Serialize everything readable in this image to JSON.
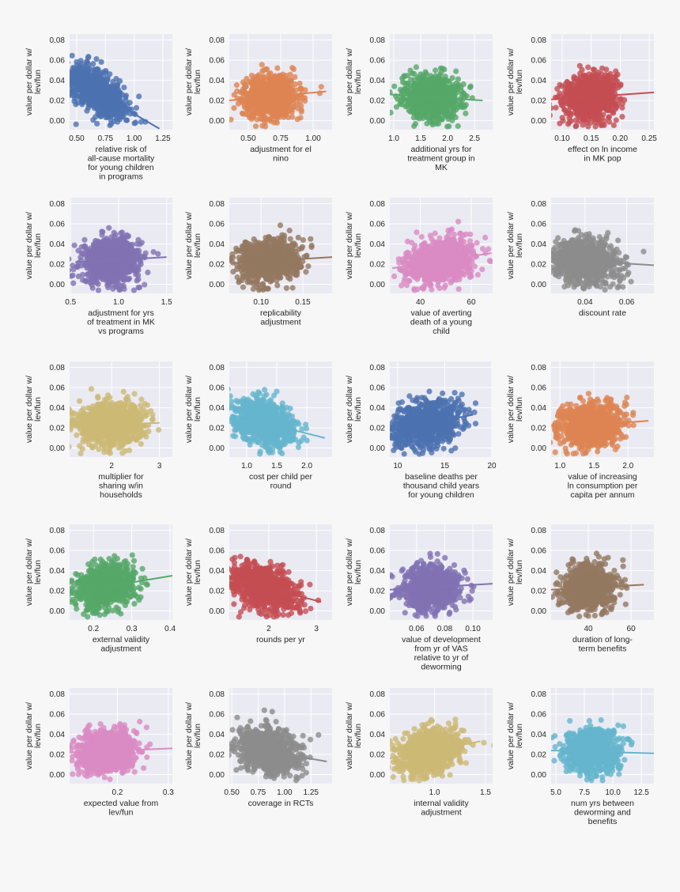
{
  "chart_data": {
    "type": "scatter",
    "layout": "grid 5 rows x 4 columns",
    "shared_ylabel": [
      "value per dollar w/",
      "lev/fun"
    ],
    "ylim": [
      -0.009,
      0.086
    ],
    "yticks": [
      "0.00",
      "0.02",
      "0.04",
      "0.06",
      "0.08"
    ],
    "ytick_values": [
      0,
      0.02,
      0.04,
      0.06,
      0.08
    ],
    "grid": true,
    "background": "#eaeaf2",
    "regression_line": true,
    "plots": [
      {
        "xlabel": [
          "relative risk of",
          "all-cause mortality",
          "for young children",
          "in programs"
        ],
        "xticks": [
          "0.50",
          "0.75",
          "1.00",
          "1.25"
        ],
        "xtick_values": [
          0.5,
          0.75,
          1.0,
          1.25
        ],
        "xlim": [
          0.438,
          1.333
        ],
        "color": "#4c72b0",
        "x_mean": 0.68,
        "x_sd": 0.12,
        "trend": [
          [
            0.44,
            0.044
          ],
          [
            1.22,
            -0.008
          ]
        ]
      },
      {
        "xlabel": [
          "adjustment for el",
          "nino"
        ],
        "xticks": [
          "0.50",
          "0.75",
          "1.00"
        ],
        "xtick_values": [
          0.5,
          0.75,
          1.0
        ],
        "xlim": [
          0.354,
          1.146
        ],
        "color": "#dd8452",
        "x_mean": 0.67,
        "x_sd": 0.1,
        "trend": [
          [
            0.354,
            0.02
          ],
          [
            1.1,
            0.029
          ]
        ]
      },
      {
        "xlabel": [
          "additional yrs for",
          "treatment group in",
          "MK"
        ],
        "xticks": [
          "1.0",
          "1.5",
          "2.0",
          "2.5"
        ],
        "xtick_values": [
          1.0,
          1.5,
          2.0,
          2.5
        ],
        "xlim": [
          0.927,
          2.835
        ],
        "color": "#55a868",
        "x_mean": 1.7,
        "x_sd": 0.25,
        "trend": [
          [
            0.93,
            0.026
          ],
          [
            2.65,
            0.02
          ]
        ]
      },
      {
        "xlabel": [
          "effect on ln income",
          "in MK pop"
        ],
        "xticks": [
          "0.10",
          "0.15",
          "0.20",
          "0.25"
        ],
        "xtick_values": [
          0.1,
          0.15,
          0.2,
          0.25
        ],
        "xlim": [
          0.081,
          0.258
        ],
        "color": "#c44e52",
        "x_mean": 0.15,
        "x_sd": 0.022,
        "trend": [
          [
            0.081,
            0.021
          ],
          [
            0.258,
            0.028
          ]
        ]
      },
      {
        "xlabel": [
          "adjustment for yrs",
          "of treatment in MK",
          "vs programs"
        ],
        "xticks": [
          "0.5",
          "1.0",
          "1.5"
        ],
        "xtick_values": [
          0.5,
          1.0,
          1.5
        ],
        "xlim": [
          0.49,
          1.56
        ],
        "color": "#8172b3",
        "x_mean": 0.92,
        "x_sd": 0.15,
        "trend": [
          [
            0.55,
            0.022
          ],
          [
            1.5,
            0.027
          ]
        ]
      },
      {
        "xlabel": [
          "replicability",
          "adjustment"
        ],
        "xticks": [
          "0.10",
          "0.15"
        ],
        "xtick_values": [
          0.1,
          0.15
        ],
        "xlim": [
          0.062,
          0.185
        ],
        "color": "#937860",
        "x_mean": 0.11,
        "x_sd": 0.018,
        "trend": [
          [
            0.065,
            0.021
          ],
          [
            0.185,
            0.027
          ]
        ]
      },
      {
        "xlabel": [
          "value of averting",
          "death of a young",
          "child"
        ],
        "xticks": [
          "40",
          "60"
        ],
        "xtick_values": [
          40,
          60
        ],
        "xlim": [
          28,
          68.4
        ],
        "color": "#da8bc3",
        "x_mean": 48,
        "x_sd": 7,
        "trend": [
          [
            29,
            0.016
          ],
          [
            68,
            0.031
          ]
        ]
      },
      {
        "xlabel": [
          "discount rate"
        ],
        "xticks": [
          "0.04",
          "0.06"
        ],
        "xtick_values": [
          0.04,
          0.06
        ],
        "xlim": [
          0.0238,
          0.073
        ],
        "color": "#8c8c8c",
        "x_mean": 0.04,
        "x_sd": 0.008,
        "trend": [
          [
            0.024,
            0.025
          ],
          [
            0.073,
            0.019
          ]
        ]
      },
      {
        "xlabel": [
          "multiplier for",
          "sharing w/in",
          "households"
        ],
        "xticks": [
          "2",
          "3"
        ],
        "xtick_values": [
          2,
          3
        ],
        "xlim": [
          1.12,
          3.27
        ],
        "color": "#ccb974",
        "x_mean": 2.0,
        "x_sd": 0.35,
        "trend": [
          [
            1.15,
            0.022
          ],
          [
            3.0,
            0.025
          ]
        ]
      },
      {
        "xlabel": [
          "cost per child per",
          "round"
        ],
        "xticks": [
          "1.0",
          "1.5",
          "2.0"
        ],
        "xtick_values": [
          1.0,
          1.5,
          2.0
        ],
        "xlim": [
          0.71,
          2.42
        ],
        "color": "#64b5cd",
        "x_mean": 1.3,
        "x_sd": 0.25,
        "trend": [
          [
            0.75,
            0.033
          ],
          [
            2.3,
            0.01
          ]
        ]
      },
      {
        "xlabel": [
          "baseline deaths per",
          "thousand child years",
          "for young children"
        ],
        "xticks": [
          "10",
          "15",
          "20"
        ],
        "xtick_values": [
          10,
          15,
          20
        ],
        "xlim": [
          9.17,
          20.08
        ],
        "color": "#4c72b0",
        "x_mean": 13,
        "x_sd": 1.8,
        "trend": [
          [
            9.2,
            0.017
          ],
          [
            18,
            0.033
          ]
        ]
      },
      {
        "xlabel": [
          "value of increasing",
          "ln consumption per",
          "capita per annum"
        ],
        "xticks": [
          "1.0",
          "1.5",
          "2.0"
        ],
        "xtick_values": [
          1.0,
          1.5,
          2.0
        ],
        "xlim": [
          0.87,
          2.38
        ],
        "color": "#dd8452",
        "x_mean": 1.45,
        "x_sd": 0.22,
        "trend": [
          [
            0.9,
            0.02
          ],
          [
            2.3,
            0.027
          ]
        ]
      },
      {
        "xlabel": [
          "external validity",
          "adjustment"
        ],
        "xticks": [
          "0.2",
          "0.3",
          "0.4"
        ],
        "xtick_values": [
          0.2,
          0.3,
          0.4
        ],
        "xlim": [
          0.1375,
          0.406
        ],
        "color": "#55a868",
        "x_mean": 0.23,
        "x_sd": 0.035,
        "trend": [
          [
            0.1375,
            0.018
          ],
          [
            0.406,
            0.035
          ]
        ]
      },
      {
        "xlabel": [
          "rounds per yr"
        ],
        "xticks": [
          "2",
          "3"
        ],
        "xtick_values": [
          2,
          3
        ],
        "xlim": [
          1.17,
          3.33
        ],
        "color": "#c44e52",
        "x_mean": 1.9,
        "x_sd": 0.35,
        "trend": [
          [
            1.17,
            0.032
          ],
          [
            3.1,
            0.009
          ]
        ]
      },
      {
        "xlabel": [
          "value of development",
          "from yr of VAS",
          "relative to yr of",
          "deworming"
        ],
        "xticks": [
          "0.06",
          "0.08",
          "0.10"
        ],
        "xtick_values": [
          0.06,
          0.08,
          0.1
        ],
        "xlim": [
          0.041,
          0.114
        ],
        "color": "#8172b3",
        "x_mean": 0.07,
        "x_sd": 0.01,
        "trend": [
          [
            0.041,
            0.021
          ],
          [
            0.114,
            0.027
          ]
        ]
      },
      {
        "xlabel": [
          "duration of long-",
          "term benefits"
        ],
        "xticks": [
          "40",
          "60"
        ],
        "xtick_values": [
          40,
          60
        ],
        "xlim": [
          22.6,
          70.7
        ],
        "color": "#937860",
        "x_mean": 40,
        "x_sd": 6,
        "trend": [
          [
            22.6,
            0.021
          ],
          [
            66,
            0.026
          ]
        ]
      },
      {
        "xlabel": [
          "expected value from",
          "lev/fun"
        ],
        "xticks": [
          "0.2",
          "0.3"
        ],
        "xtick_values": [
          0.2,
          0.3
        ],
        "xlim": [
          0.106,
          0.308
        ],
        "color": "#da8bc3",
        "x_mean": 0.18,
        "x_sd": 0.028,
        "trend": [
          [
            0.106,
            0.022
          ],
          [
            0.308,
            0.026
          ]
        ]
      },
      {
        "xlabel": [
          "coverage in RCTs"
        ],
        "xticks": [
          "0.50",
          "0.75",
          "1.00",
          "1.25"
        ],
        "xtick_values": [
          0.5,
          0.75,
          1.0,
          1.25
        ],
        "xlim": [
          0.477,
          1.45
        ],
        "color": "#8c8c8c",
        "x_mean": 0.85,
        "x_sd": 0.14,
        "trend": [
          [
            0.477,
            0.03
          ],
          [
            1.4,
            0.013
          ]
        ]
      },
      {
        "xlabel": [
          "internal validity",
          "adjustment"
        ],
        "xticks": [
          "1.0",
          "1.5"
        ],
        "xtick_values": [
          1.0,
          1.5
        ],
        "xlim": [
          0.56,
          1.57
        ],
        "color": "#ccb974",
        "x_mean": 0.95,
        "x_sd": 0.15,
        "trend": [
          [
            0.56,
            0.016
          ],
          [
            1.45,
            0.033
          ]
        ]
      },
      {
        "xlabel": [
          "num yrs between",
          "deworming and",
          "benefits"
        ],
        "xticks": [
          "5.0",
          "7.5",
          "10.0",
          "12.5"
        ],
        "xtick_values": [
          5,
          7.5,
          10,
          12.5
        ],
        "xlim": [
          4.58,
          13.6
        ],
        "color": "#64b5cd",
        "x_mean": 8.2,
        "x_sd": 1.2,
        "trend": [
          [
            4.58,
            0.024
          ],
          [
            13.6,
            0.021
          ]
        ]
      }
    ]
  }
}
